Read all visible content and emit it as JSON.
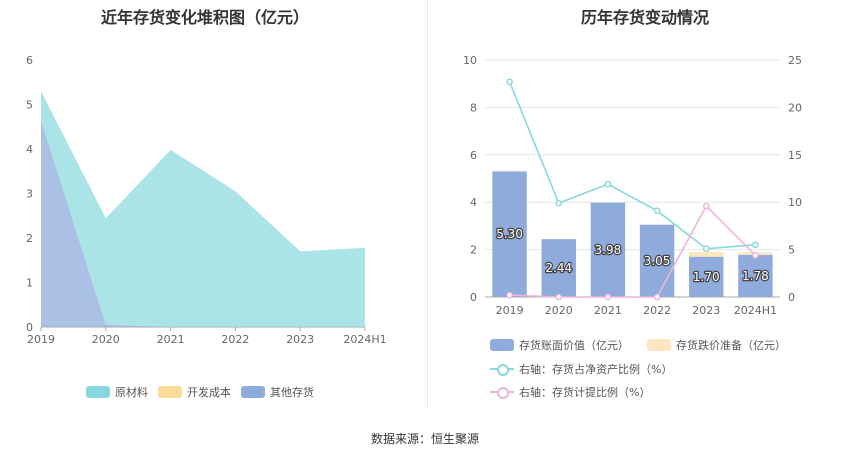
{
  "left": {
    "title": "近年存货变化堆积图（亿元）",
    "legend": [
      {
        "label": "原材料",
        "color": "#86d8db"
      },
      {
        "label": "开发成本",
        "color": "#fbd99a"
      },
      {
        "label": "其他存货",
        "color": "#8fabdc"
      }
    ]
  },
  "right": {
    "title": "历年存货变动情况",
    "legend": [
      {
        "label": "存货账面价值（亿元）",
        "color": "#8fabdc"
      },
      {
        "label": "存货跌价准备（亿元）",
        "color": "#fde6c0"
      },
      {
        "label": "右轴：存货占净资产比例（%）",
        "color": "#86d8db"
      },
      {
        "label": "右轴：存货计提比例（%）",
        "color": "#eeb3dc"
      }
    ]
  },
  "source": "数据来源：恒生聚源",
  "chart_data": [
    {
      "type": "area",
      "title": "近年存货变化堆积图（亿元）",
      "categories": [
        "2019",
        "2020",
        "2021",
        "2022",
        "2023",
        "2024H1"
      ],
      "ylim": [
        0,
        6
      ],
      "yticks": [
        0,
        1,
        2,
        3,
        4,
        5,
        6
      ],
      "stacked": true,
      "series": [
        {
          "name": "其他存货",
          "color": "#8fabdc",
          "values": [
            4.65,
            0.05,
            0,
            0,
            0,
            0
          ]
        },
        {
          "name": "原材料",
          "color": "#86d8db",
          "values": [
            0.65,
            2.39,
            3.98,
            3.05,
            1.7,
            1.78
          ]
        },
        {
          "name": "开发成本",
          "color": "#fbd99a",
          "values": [
            0,
            0,
            0,
            0,
            0,
            0
          ]
        }
      ],
      "legend": "bottom",
      "grid": false
    },
    {
      "type": "bar",
      "title": "历年存货变动情况",
      "categories": [
        "2019",
        "2020",
        "2021",
        "2022",
        "2023",
        "2024H1"
      ],
      "ylim": [
        0,
        10
      ],
      "yticks": [
        0,
        2,
        4,
        6,
        8,
        10
      ],
      "y2lim": [
        0,
        25
      ],
      "y2ticks": [
        0,
        5,
        10,
        15,
        20,
        25
      ],
      "bar_series": [
        {
          "name": "存货账面价值（亿元）",
          "color": "#8fabdc",
          "values": [
            5.3,
            2.44,
            3.98,
            3.05,
            1.7,
            1.78
          ],
          "labels": [
            "5.30",
            "2.44",
            "3.98",
            "3.05",
            "1.70",
            "1.78"
          ]
        },
        {
          "name": "存货跌价准备（亿元）",
          "color": "#fde6c0",
          "values": [
            0,
            0,
            0,
            0,
            0.2,
            0.1
          ]
        }
      ],
      "line_series": [
        {
          "name": "右轴：存货占净资产比例（%）",
          "color": "#86d8db",
          "axis": "right",
          "values": [
            22.7,
            9.9,
            11.9,
            9.1,
            5.1,
            5.5
          ]
        },
        {
          "name": "右轴：存货计提比例（%）",
          "color": "#eeb3dc",
          "axis": "right",
          "values": [
            0.2,
            0,
            0,
            0,
            9.6,
            4.4
          ]
        }
      ],
      "legend": "bottom",
      "grid": true
    }
  ]
}
